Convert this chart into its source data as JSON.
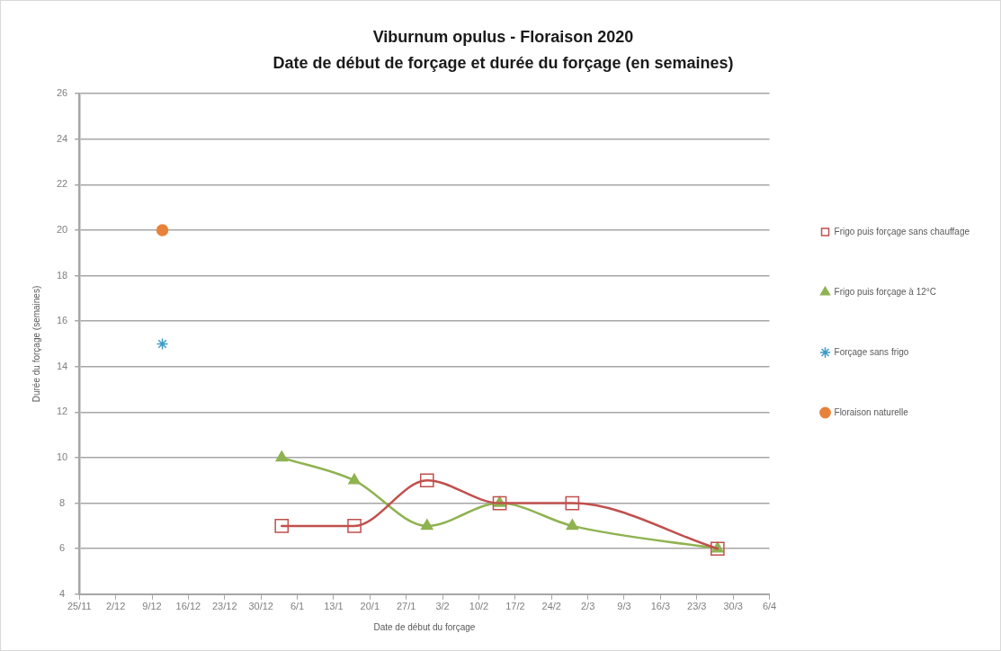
{
  "chart_data": {
    "type": "line",
    "title": "Viburnum opulus - Floraison 2020",
    "subtitle": "Date de début de forçage et durée du forçage (en semaines)",
    "xlabel": "Date de début du forçage",
    "ylabel": "Durée du forçage (semaines)",
    "series": [
      {
        "name": "Frigo puis forçage sans chauffage",
        "type": "line",
        "color": "#c0504d",
        "marker": "square",
        "x": [
          "2020-01-03",
          "2020-01-17",
          "2020-01-31",
          "2020-02-14",
          "2020-02-28",
          "2020-03-27"
        ],
        "values": [
          7,
          7,
          9,
          8,
          8,
          6
        ]
      },
      {
        "name": "Frigo puis forçage à 12°C",
        "type": "line",
        "color": "#8fb350",
        "marker": "triangle",
        "x": [
          "2020-01-03",
          "2020-01-17",
          "2020-01-31",
          "2020-02-14",
          "2020-02-28",
          "2020-03-27"
        ],
        "values": [
          10,
          9,
          7,
          8,
          7,
          6
        ]
      },
      {
        "name": "Forçage sans frigo",
        "type": "scatter",
        "color": "#3d9cc4",
        "marker": "cross",
        "x": [
          "2019-12-11"
        ],
        "values": [
          15
        ]
      },
      {
        "name": "Floraison naturelle",
        "type": "scatter",
        "color": "#e8823a",
        "marker": "circle",
        "x": [
          "2019-12-11"
        ],
        "values": [
          20
        ]
      }
    ],
    "xlim": [
      "2019-11-25",
      "2020-04-06"
    ],
    "xticks": [
      {
        "value": "2019-11-25",
        "label": "25/11"
      },
      {
        "value": "2019-12-02",
        "label": "2/12"
      },
      {
        "value": "2019-12-09",
        "label": "9/12"
      },
      {
        "value": "2019-12-16",
        "label": "16/12"
      },
      {
        "value": "2019-12-23",
        "label": "23/12"
      },
      {
        "value": "2019-12-30",
        "label": "30/12"
      },
      {
        "value": "2020-01-06",
        "label": "6/1"
      },
      {
        "value": "2020-01-13",
        "label": "13/1"
      },
      {
        "value": "2020-01-20",
        "label": "20/1"
      },
      {
        "value": "2020-01-27",
        "label": "27/1"
      },
      {
        "value": "2020-02-03",
        "label": "3/2"
      },
      {
        "value": "2020-02-10",
        "label": "10/2"
      },
      {
        "value": "2020-02-17",
        "label": "17/2"
      },
      {
        "value": "2020-02-24",
        "label": "24/2"
      },
      {
        "value": "2020-03-02",
        "label": "2/3"
      },
      {
        "value": "2020-03-09",
        "label": "9/3"
      },
      {
        "value": "2020-03-16",
        "label": "16/3"
      },
      {
        "value": "2020-03-23",
        "label": "23/3"
      },
      {
        "value": "2020-03-30",
        "label": "30/3"
      },
      {
        "value": "2020-04-06",
        "label": "6/4"
      }
    ],
    "ylim": [
      4,
      26
    ],
    "yticks": [
      4,
      6,
      8,
      10,
      12,
      14,
      16,
      18,
      20,
      22,
      24,
      26
    ],
    "grid": "y",
    "legend": "right"
  }
}
